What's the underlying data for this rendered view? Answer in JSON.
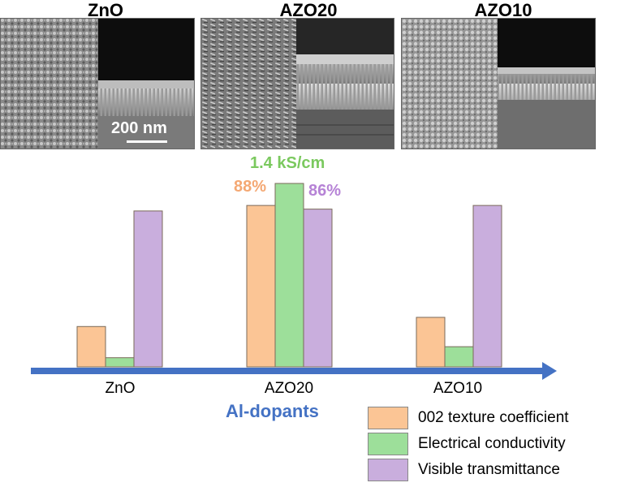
{
  "micrographs": [
    {
      "title": "ZnO",
      "scale_label": "200 nm"
    },
    {
      "title": "AZO20"
    },
    {
      "title": "AZO10"
    }
  ],
  "chart_data": {
    "type": "bar",
    "categories": [
      "ZnO",
      "AZO20",
      "AZO10"
    ],
    "xlabel": "Al-dopants",
    "ylabel": "",
    "ylim": [
      0,
      100
    ],
    "series": [
      {
        "name": "002 texture coefficient",
        "color": "#fbc595",
        "values": [
          22,
          88,
          27
        ]
      },
      {
        "name": "Electrical conductivity",
        "color": "#9ddf9a",
        "values": [
          5,
          100,
          11
        ]
      },
      {
        "name": "Visible transmittance",
        "color": "#c9aedd",
        "values": [
          85,
          86,
          88
        ]
      }
    ],
    "annotations": [
      {
        "text": "1.4 kS/cm",
        "color": "#7bc95f"
      },
      {
        "text": "88%",
        "color": "#f4a873"
      },
      {
        "text": "86%",
        "color": "#b683d6"
      }
    ],
    "axis_color": "#4472c4",
    "legend_position": "bottom-right"
  }
}
